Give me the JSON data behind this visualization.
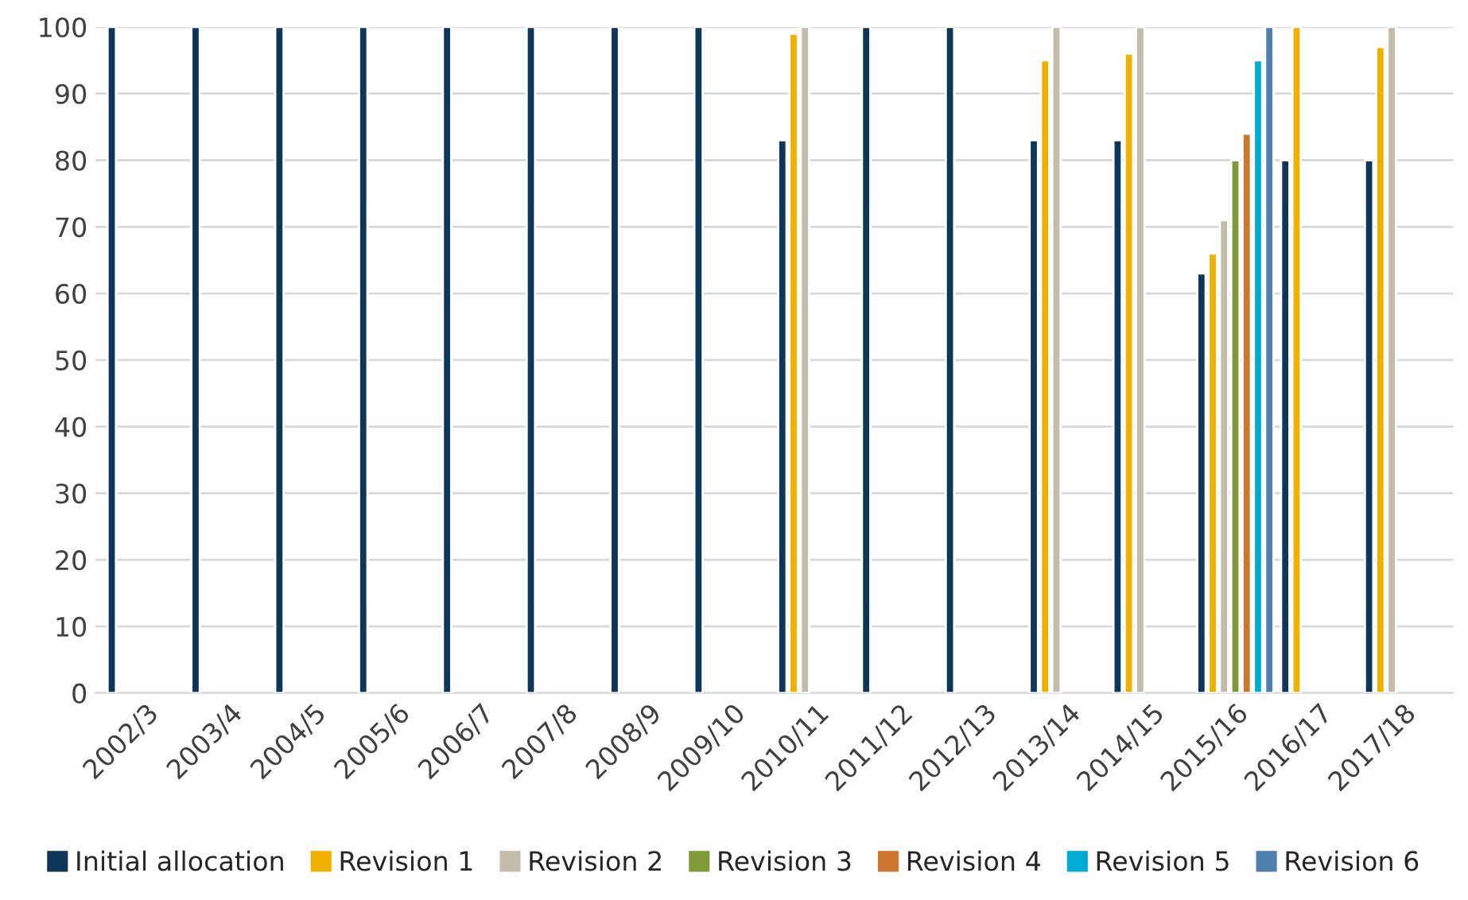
{
  "chart_data": {
    "type": "bar",
    "categories": [
      "2002/3",
      "2003/4",
      "2004/5",
      "2005/6",
      "2006/7",
      "2007/8",
      "2008/9",
      "2009/10",
      "2010/11",
      "2011/12",
      "2012/13",
      "2013/14",
      "2014/15",
      "2015/16",
      "2016/17",
      "2017/18"
    ],
    "series": [
      {
        "name": "Initial allocation",
        "color": "#0e3658",
        "values": [
          100,
          100,
          100,
          100,
          100,
          100,
          100,
          100,
          83,
          100,
          100,
          83,
          83,
          63,
          80,
          80
        ]
      },
      {
        "name": "Revision 1",
        "color": "#f0b000",
        "values": [
          null,
          null,
          null,
          null,
          null,
          null,
          null,
          null,
          99,
          null,
          null,
          95,
          96,
          66,
          100,
          97
        ]
      },
      {
        "name": "Revision 2",
        "color": "#c3bcab",
        "values": [
          null,
          null,
          null,
          null,
          null,
          null,
          null,
          null,
          100,
          null,
          null,
          100,
          100,
          71,
          null,
          100
        ]
      },
      {
        "name": "Revision 3",
        "color": "#7f9a37",
        "values": [
          null,
          null,
          null,
          null,
          null,
          null,
          null,
          null,
          null,
          null,
          null,
          null,
          null,
          80,
          null,
          null
        ]
      },
      {
        "name": "Revision 4",
        "color": "#cc7630",
        "values": [
          null,
          null,
          null,
          null,
          null,
          null,
          null,
          null,
          null,
          null,
          null,
          null,
          null,
          84,
          null,
          null
        ]
      },
      {
        "name": "Revision 5",
        "color": "#00acd4",
        "values": [
          null,
          null,
          null,
          null,
          null,
          null,
          null,
          null,
          null,
          null,
          null,
          null,
          null,
          95,
          null,
          null
        ]
      },
      {
        "name": "Revision 6",
        "color": "#4f7fad",
        "values": [
          null,
          null,
          null,
          null,
          null,
          null,
          null,
          null,
          null,
          null,
          null,
          null,
          null,
          100,
          null,
          null
        ]
      }
    ],
    "ylim": [
      0,
      100
    ],
    "yticks": [
      0,
      10,
      20,
      30,
      40,
      50,
      60,
      70,
      80,
      90,
      100
    ],
    "grid": "y",
    "legend": "bottom"
  }
}
